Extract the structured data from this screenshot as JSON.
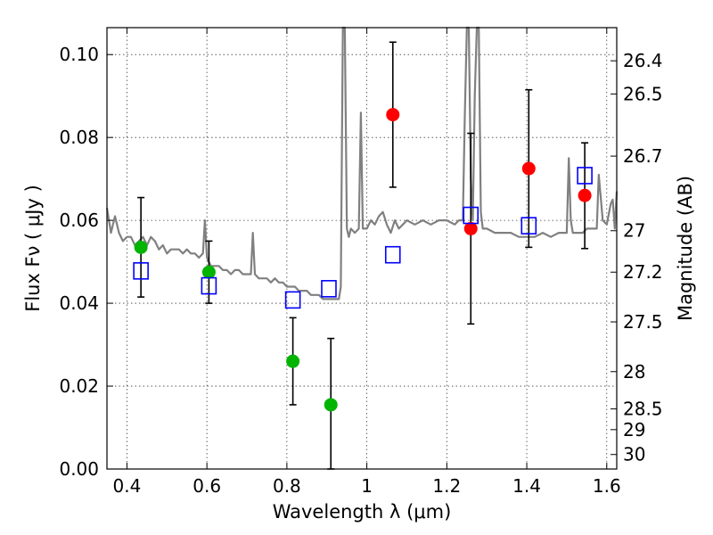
{
  "chart_data": {
    "type": "scatter",
    "xlabel": "Wavelength  λ (μm)",
    "ylabel": "Flux  Fν  ( μJy )",
    "ylabel_right": "Magnitude (AB)",
    "xlim": [
      0.35,
      1.625
    ],
    "ylim": [
      0.0,
      0.1065
    ],
    "xticks": [
      0.4,
      0.6,
      0.8,
      1.0,
      1.2,
      1.4,
      1.6
    ],
    "xtick_labels": [
      "0.4",
      "0.6",
      "0.8",
      "1",
      "1.2",
      "1.4",
      "1.6"
    ],
    "yticks": [
      0.0,
      0.02,
      0.04,
      0.06,
      0.08,
      0.1
    ],
    "ytick_labels": [
      "0.00",
      "0.02",
      "0.04",
      "0.06",
      "0.08",
      "0.10"
    ],
    "magnitude_ticks": [
      {
        "label": "26.4",
        "flux": 0.0985
      },
      {
        "label": "26.5",
        "flux": 0.0905
      },
      {
        "label": "26.7",
        "flux": 0.0755
      },
      {
        "label": "27",
        "flux": 0.0575
      },
      {
        "label": "27.2",
        "flux": 0.0475
      },
      {
        "label": "27.5",
        "flux": 0.0355
      },
      {
        "label": "28",
        "flux": 0.0235
      },
      {
        "label": "28.5",
        "flux": 0.0145
      },
      {
        "label": "29",
        "flux": 0.0095
      },
      {
        "label": "30",
        "flux": 0.0035
      }
    ],
    "grid": true,
    "series": [
      {
        "name": "model spectrum",
        "kind": "line",
        "color": "#808080",
        "x": [
          0.35,
          0.36,
          0.37,
          0.38,
          0.39,
          0.4,
          0.41,
          0.42,
          0.43,
          0.44,
          0.45,
          0.46,
          0.47,
          0.48,
          0.49,
          0.5,
          0.51,
          0.52,
          0.53,
          0.54,
          0.55,
          0.56,
          0.57,
          0.58,
          0.59,
          0.595,
          0.6,
          0.605,
          0.61,
          0.62,
          0.63,
          0.64,
          0.65,
          0.66,
          0.67,
          0.68,
          0.69,
          0.7,
          0.71,
          0.715,
          0.72,
          0.73,
          0.74,
          0.75,
          0.76,
          0.77,
          0.78,
          0.79,
          0.8,
          0.81,
          0.82,
          0.83,
          0.84,
          0.85,
          0.86,
          0.87,
          0.88,
          0.89,
          0.9,
          0.91,
          0.92,
          0.93,
          0.935,
          0.94,
          0.945,
          0.95,
          0.955,
          0.96,
          0.97,
          0.98,
          0.985,
          0.99,
          0.995,
          1.0,
          1.01,
          1.02,
          1.03,
          1.04,
          1.05,
          1.06,
          1.07,
          1.08,
          1.09,
          1.1,
          1.12,
          1.14,
          1.16,
          1.18,
          1.2,
          1.22,
          1.23,
          1.24,
          1.245,
          1.25,
          1.255,
          1.26,
          1.265,
          1.27,
          1.275,
          1.28,
          1.285,
          1.29,
          1.295,
          1.3,
          1.32,
          1.34,
          1.36,
          1.38,
          1.4,
          1.42,
          1.44,
          1.46,
          1.48,
          1.5,
          1.505,
          1.51,
          1.515,
          1.52,
          1.54,
          1.55,
          1.56,
          1.57,
          1.575,
          1.58,
          1.59,
          1.6,
          1.61,
          1.615,
          1.62,
          1.625
        ],
        "y": [
          0.063,
          0.057,
          0.061,
          0.057,
          0.055,
          0.056,
          0.056,
          0.054,
          0.055,
          0.056,
          0.054,
          0.056,
          0.055,
          0.053,
          0.054,
          0.052,
          0.053,
          0.053,
          0.053,
          0.052,
          0.053,
          0.052,
          0.052,
          0.051,
          0.052,
          0.06,
          0.051,
          0.05,
          0.049,
          0.049,
          0.049,
          0.048,
          0.048,
          0.047,
          0.048,
          0.048,
          0.047,
          0.047,
          0.047,
          0.057,
          0.047,
          0.046,
          0.046,
          0.046,
          0.045,
          0.046,
          0.045,
          0.045,
          0.044,
          0.044,
          0.044,
          0.043,
          0.043,
          0.043,
          0.042,
          0.042,
          0.042,
          0.041,
          0.041,
          0.041,
          0.041,
          0.041,
          0.044,
          0.1065,
          0.1065,
          0.058,
          0.056,
          0.058,
          0.057,
          0.058,
          0.086,
          0.058,
          0.058,
          0.058,
          0.06,
          0.059,
          0.061,
          0.062,
          0.059,
          0.057,
          0.06,
          0.058,
          0.059,
          0.06,
          0.059,
          0.06,
          0.059,
          0.06,
          0.06,
          0.059,
          0.06,
          0.06,
          0.085,
          0.1065,
          0.1065,
          0.07,
          0.06,
          0.09,
          0.1065,
          0.1065,
          0.062,
          0.058,
          0.058,
          0.058,
          0.057,
          0.057,
          0.057,
          0.056,
          0.056,
          0.056,
          0.057,
          0.056,
          0.057,
          0.057,
          0.075,
          0.06,
          0.057,
          0.057,
          0.057,
          0.058,
          0.058,
          0.058,
          0.058,
          0.071,
          0.06,
          0.059,
          0.064,
          0.065,
          0.058,
          0.067
        ]
      },
      {
        "name": "green points",
        "kind": "errorbar",
        "color": "#00b400",
        "x": [
          0.435,
          0.605,
          0.815,
          0.91
        ],
        "y": [
          0.0535,
          0.0475,
          0.026,
          0.0155
        ],
        "err_low": [
          0.012,
          0.0075,
          0.0105,
          0.0155
        ],
        "err_high": [
          0.012,
          0.0075,
          0.0105,
          0.016
        ]
      },
      {
        "name": "red points",
        "kind": "errorbar",
        "color": "#ff0000",
        "x": [
          1.065,
          1.26,
          1.405,
          1.545
        ],
        "y": [
          0.0855,
          0.058,
          0.0725,
          0.066
        ],
        "err_low": [
          0.0175,
          0.023,
          0.019,
          0.0128
        ],
        "err_high": [
          0.0175,
          0.023,
          0.019,
          0.0127
        ]
      },
      {
        "name": "model photometry",
        "kind": "open-square",
        "color": "#0000ff",
        "x": [
          0.435,
          0.605,
          0.815,
          0.905,
          1.065,
          1.26,
          1.405,
          1.545
        ],
        "y": [
          0.0478,
          0.0442,
          0.0408,
          0.0435,
          0.0517,
          0.0612,
          0.0587,
          0.0708
        ]
      }
    ]
  }
}
